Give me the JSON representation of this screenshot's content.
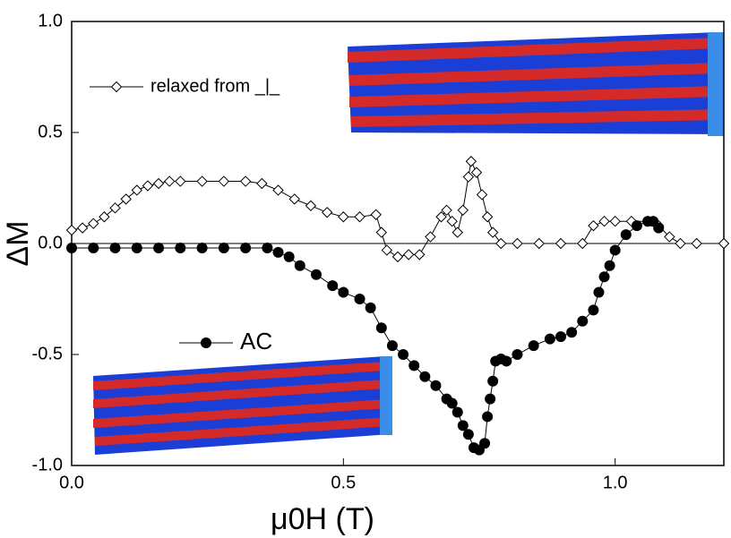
{
  "chart_data": {
    "type": "line",
    "xlabel": "μ0H (T)",
    "ylabel": "ΔM",
    "xlim": [
      0,
      1.2
    ],
    "ylim": [
      -1,
      1
    ],
    "xticks": [
      {
        "value": 0,
        "label": "0.0"
      },
      {
        "value": 0.5,
        "label": "0.5"
      },
      {
        "value": 1,
        "label": "1.0"
      }
    ],
    "yticks": [
      {
        "value": -1,
        "label": "-1.0"
      },
      {
        "value": -0.5,
        "label": "-0.5"
      },
      {
        "value": 0,
        "label": "0.0"
      },
      {
        "value": 0.5,
        "label": "0.5"
      },
      {
        "value": 1,
        "label": "1.0"
      }
    ],
    "series": [
      {
        "name": "relaxed from _|_",
        "color": "#000000",
        "marker": "open-diamond",
        "x": [
          0,
          0.02,
          0.04,
          0.06,
          0.08,
          0.1,
          0.12,
          0.14,
          0.16,
          0.18,
          0.2,
          0.24,
          0.28,
          0.32,
          0.35,
          0.38,
          0.41,
          0.44,
          0.47,
          0.5,
          0.53,
          0.56,
          0.57,
          0.58,
          0.6,
          0.62,
          0.64,
          0.66,
          0.68,
          0.69,
          0.7,
          0.71,
          0.72,
          0.73,
          0.735,
          0.745,
          0.755,
          0.765,
          0.775,
          0.79,
          0.82,
          0.86,
          0.9,
          0.94,
          0.96,
          0.98,
          1.0,
          1.03,
          1.06,
          1.08,
          1.1,
          1.12,
          1.15,
          1.2
        ],
        "values": [
          0.06,
          0.07,
          0.09,
          0.12,
          0.16,
          0.2,
          0.24,
          0.26,
          0.27,
          0.28,
          0.28,
          0.28,
          0.28,
          0.28,
          0.27,
          0.24,
          0.2,
          0.17,
          0.14,
          0.12,
          0.12,
          0.13,
          0.05,
          -0.03,
          -0.06,
          -0.05,
          -0.05,
          0.03,
          0.12,
          0.15,
          0.1,
          0.05,
          0.15,
          0.3,
          0.37,
          0.32,
          0.22,
          0.12,
          0.05,
          0.0,
          0.0,
          0.0,
          0.0,
          0.0,
          0.08,
          0.1,
          0.1,
          0.1,
          0.1,
          0.08,
          0.03,
          0.0,
          0.0,
          0.0
        ]
      },
      {
        "name": "AC",
        "color": "#000000",
        "marker": "filled-circle",
        "x": [
          0,
          0.04,
          0.08,
          0.12,
          0.16,
          0.2,
          0.24,
          0.28,
          0.32,
          0.36,
          0.38,
          0.4,
          0.42,
          0.45,
          0.48,
          0.5,
          0.53,
          0.55,
          0.57,
          0.59,
          0.61,
          0.63,
          0.65,
          0.67,
          0.69,
          0.7,
          0.71,
          0.72,
          0.73,
          0.74,
          0.75,
          0.76,
          0.765,
          0.77,
          0.775,
          0.78,
          0.79,
          0.8,
          0.82,
          0.85,
          0.88,
          0.9,
          0.92,
          0.94,
          0.96,
          0.97,
          0.98,
          0.99,
          1.0,
          1.02,
          1.04,
          1.06,
          1.07,
          1.08
        ],
        "values": [
          -0.02,
          -0.02,
          -0.02,
          -0.02,
          -0.02,
          -0.02,
          -0.02,
          -0.02,
          -0.02,
          -0.02,
          -0.04,
          -0.06,
          -0.1,
          -0.14,
          -0.19,
          -0.22,
          -0.25,
          -0.29,
          -0.38,
          -0.46,
          -0.5,
          -0.55,
          -0.6,
          -0.64,
          -0.7,
          -0.72,
          -0.76,
          -0.82,
          -0.86,
          -0.92,
          -0.93,
          -0.9,
          -0.78,
          -0.7,
          -0.62,
          -0.53,
          -0.52,
          -0.53,
          -0.5,
          -0.46,
          -0.43,
          -0.42,
          -0.4,
          -0.35,
          -0.3,
          -0.22,
          -0.15,
          -0.1,
          -0.03,
          0.04,
          0.08,
          0.1,
          0.1,
          0.07
        ]
      }
    ]
  }
}
